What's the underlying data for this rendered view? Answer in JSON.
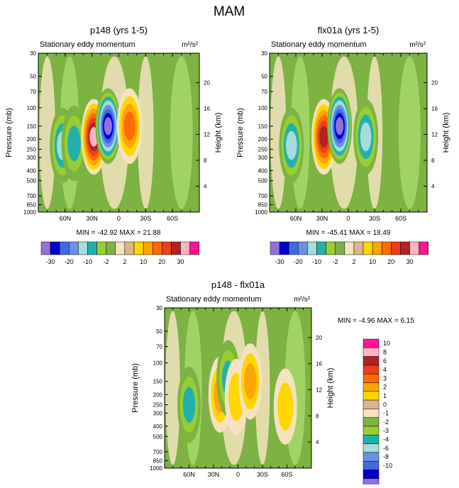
{
  "figure_title": "MAM",
  "palette": {
    "neg": [
      "#9370db",
      "#0000cd",
      "#4169e1",
      "#6a8fe8",
      "#a6dcdc",
      "#20b2aa",
      "#9acd32",
      "#7cb342"
    ],
    "mid": "#f5e3c0",
    "pos": [
      "#dcb48c",
      "#ffd700",
      "#ffa500",
      "#ff6a00",
      "#e8401c",
      "#b22222",
      "#ffb6c1",
      "#ff1493"
    ],
    "background_fill": "#7cb342",
    "light_green": "#a6d96a"
  },
  "chart_data": [
    {
      "type": "contour",
      "title": "p148 (yrs 1-5)",
      "subtitle": "Stationary eddy momentum",
      "units": "m²/s²",
      "ylabel": "Pressure (mb)",
      "ylabel_right": "Height (km)",
      "x_ticks": [
        "60N",
        "30N",
        "0",
        "30S",
        "60S"
      ],
      "x_range": [
        90,
        -90
      ],
      "pressure_ticks": [
        "30",
        "50",
        "70",
        "100",
        "150",
        "200",
        "250",
        "300",
        "400",
        "500",
        "700",
        "850",
        "1000"
      ],
      "height_ticks": [
        "20",
        "16",
        "12",
        "8",
        "4"
      ],
      "stats": "MIN = -42.92   MAX = 21.88",
      "features": [
        {
          "lat": 63,
          "p": 230,
          "value": -10
        },
        {
          "lat": 50,
          "p": 220,
          "value": -5
        },
        {
          "lat": 28,
          "p": 190,
          "value": 25
        },
        {
          "lat": 12,
          "p": 150,
          "value": -30
        },
        {
          "lat": -12,
          "p": 150,
          "value": 10
        }
      ]
    },
    {
      "type": "contour",
      "title": "flx01a (yrs 1-5)",
      "subtitle": "Stationary eddy momentum",
      "units": "m²/s²",
      "ylabel": "Pressure (mb)",
      "ylabel_right": "Height (km)",
      "x_ticks": [
        "60N",
        "30N",
        "0",
        "30S",
        "60S"
      ],
      "x_range": [
        90,
        -90
      ],
      "pressure_ticks": [
        "30",
        "50",
        "70",
        "100",
        "150",
        "200",
        "250",
        "300",
        "400",
        "500",
        "700",
        "850",
        "1000"
      ],
      "height_ticks": [
        "20",
        "16",
        "12",
        "8",
        "4"
      ],
      "stats": "MIN = -45.41   MAX = 18.49",
      "features": [
        {
          "lat": 65,
          "p": 230,
          "value": -10
        },
        {
          "lat": 28,
          "p": 190,
          "value": 20
        },
        {
          "lat": 10,
          "p": 150,
          "value": -30
        },
        {
          "lat": -20,
          "p": 190,
          "value": -10
        }
      ]
    },
    {
      "type": "contour",
      "title": "p148 - flx01a",
      "subtitle": "Stationary eddy momentum",
      "units": "m²/s²",
      "ylabel": "Pressure (mb)",
      "ylabel_right": "Height (km)",
      "x_ticks": [
        "60N",
        "30N",
        "0",
        "30S",
        "60S"
      ],
      "x_range": [
        90,
        -90
      ],
      "pressure_ticks": [
        "30",
        "50",
        "70",
        "100",
        "150",
        "200",
        "250",
        "300",
        "400",
        "500",
        "700",
        "850",
        "1000"
      ],
      "height_ticks": [
        "20",
        "16",
        "12",
        "8",
        "4"
      ],
      "stats": "MIN = -4.96   MAX =  6.15",
      "features": [
        {
          "lat": 60,
          "p": 250,
          "value": -5
        },
        {
          "lat": 22,
          "p": 200,
          "value": 5
        },
        {
          "lat": 12,
          "p": 140,
          "value": -5
        },
        {
          "lat": 2,
          "p": 210,
          "value": 3
        },
        {
          "lat": -15,
          "p": 150,
          "value": 6
        },
        {
          "lat": -58,
          "p": 260,
          "value": 3
        }
      ]
    }
  ],
  "colorbar_top": {
    "labels": [
      "-30",
      "-20",
      "-10",
      "-2",
      "2",
      "10",
      "20",
      "30"
    ]
  },
  "colorbar_bottom": {
    "labels": [
      "10",
      "8",
      "6",
      "4",
      "3",
      "2",
      "1",
      "0",
      "-1",
      "-2",
      "-3",
      "-4",
      "-6",
      "-8",
      "-10"
    ]
  }
}
